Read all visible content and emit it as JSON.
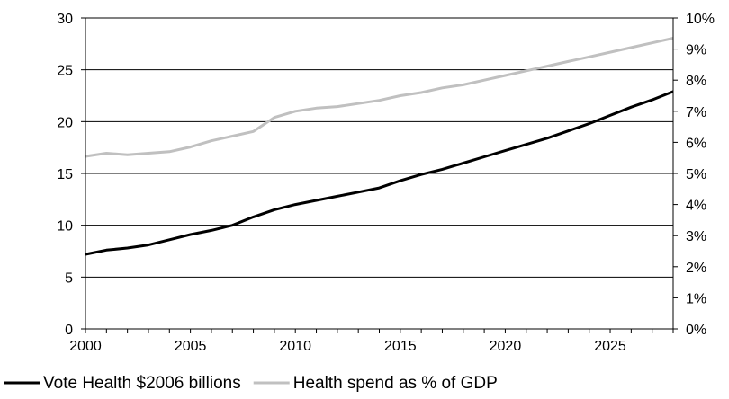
{
  "chart_data": {
    "type": "line",
    "title": "",
    "xlabel": "",
    "ylabel": "",
    "x": [
      2000,
      2001,
      2002,
      2003,
      2004,
      2005,
      2006,
      2007,
      2008,
      2009,
      2010,
      2011,
      2012,
      2013,
      2014,
      2015,
      2016,
      2017,
      2018,
      2019,
      2020,
      2021,
      2022,
      2023,
      2024,
      2025,
      2026,
      2027,
      2028
    ],
    "xlim": [
      2000,
      2028
    ],
    "x_ticks": [
      2000,
      2005,
      2010,
      2015,
      2020,
      2025
    ],
    "ylim_left": [
      0,
      30
    ],
    "y_ticks_left": [
      0,
      5,
      10,
      15,
      20,
      25,
      30
    ],
    "ylim_right": [
      0,
      10
    ],
    "y_ticks_right": [
      "0%",
      "1%",
      "2%",
      "3%",
      "4%",
      "5%",
      "6%",
      "7%",
      "8%",
      "9%",
      "10%"
    ],
    "grid": "horizontal",
    "legend_position": "bottom",
    "series": [
      {
        "name": "Vote Health $2006 billions",
        "axis": "left",
        "color": "#000000",
        "values": [
          7.2,
          7.6,
          7.8,
          8.1,
          8.6,
          9.1,
          9.5,
          10.0,
          10.8,
          11.5,
          12.0,
          12.4,
          12.8,
          13.2,
          13.6,
          14.3,
          14.9,
          15.4,
          16.0,
          16.6,
          17.2,
          17.8,
          18.4,
          19.1,
          19.8,
          20.6,
          21.4,
          22.1,
          22.9
        ]
      },
      {
        "name": "Health spend as % of GDP",
        "axis": "right",
        "color": "#c0c0c0",
        "values": [
          5.55,
          5.65,
          5.6,
          5.65,
          5.7,
          5.85,
          6.05,
          6.2,
          6.35,
          6.8,
          7.0,
          7.1,
          7.15,
          7.25,
          7.35,
          7.5,
          7.6,
          7.75,
          7.85,
          8.0,
          8.15,
          8.3,
          8.45,
          8.6,
          8.75,
          8.9,
          9.05,
          9.2,
          9.35
        ]
      }
    ]
  }
}
